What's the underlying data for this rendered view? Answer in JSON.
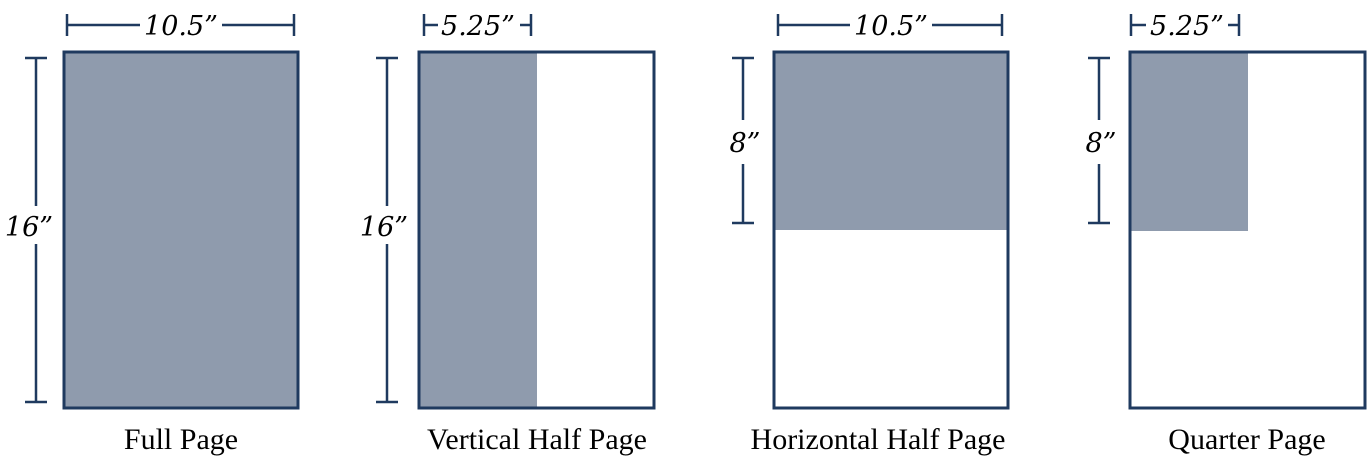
{
  "colors": {
    "outline": "#1f3a5f",
    "fill": "#8f9bad",
    "background": "#ffffff",
    "text": "#000000"
  },
  "diagram": {
    "title": "",
    "panels": [
      {
        "id": "full-page",
        "caption": "Full Page",
        "width_label": "10.5”",
        "height_label": "16”",
        "shaded": {
          "width_fraction": 1.0,
          "height_fraction": 1.0
        }
      },
      {
        "id": "vertical-half-page",
        "caption": "Vertical Half Page",
        "width_label": "5.25”",
        "height_label": "16”",
        "shaded": {
          "width_fraction": 0.5,
          "height_fraction": 1.0
        }
      },
      {
        "id": "horizontal-half-page",
        "caption": "Horizontal Half Page",
        "width_label": "10.5”",
        "height_label": "8”",
        "shaded": {
          "width_fraction": 1.0,
          "height_fraction": 0.5
        }
      },
      {
        "id": "quarter-page",
        "caption": "Quarter Page",
        "width_label": "5.25”",
        "height_label": "8”",
        "shaded": {
          "width_fraction": 0.5,
          "height_fraction": 0.5
        }
      }
    ]
  }
}
